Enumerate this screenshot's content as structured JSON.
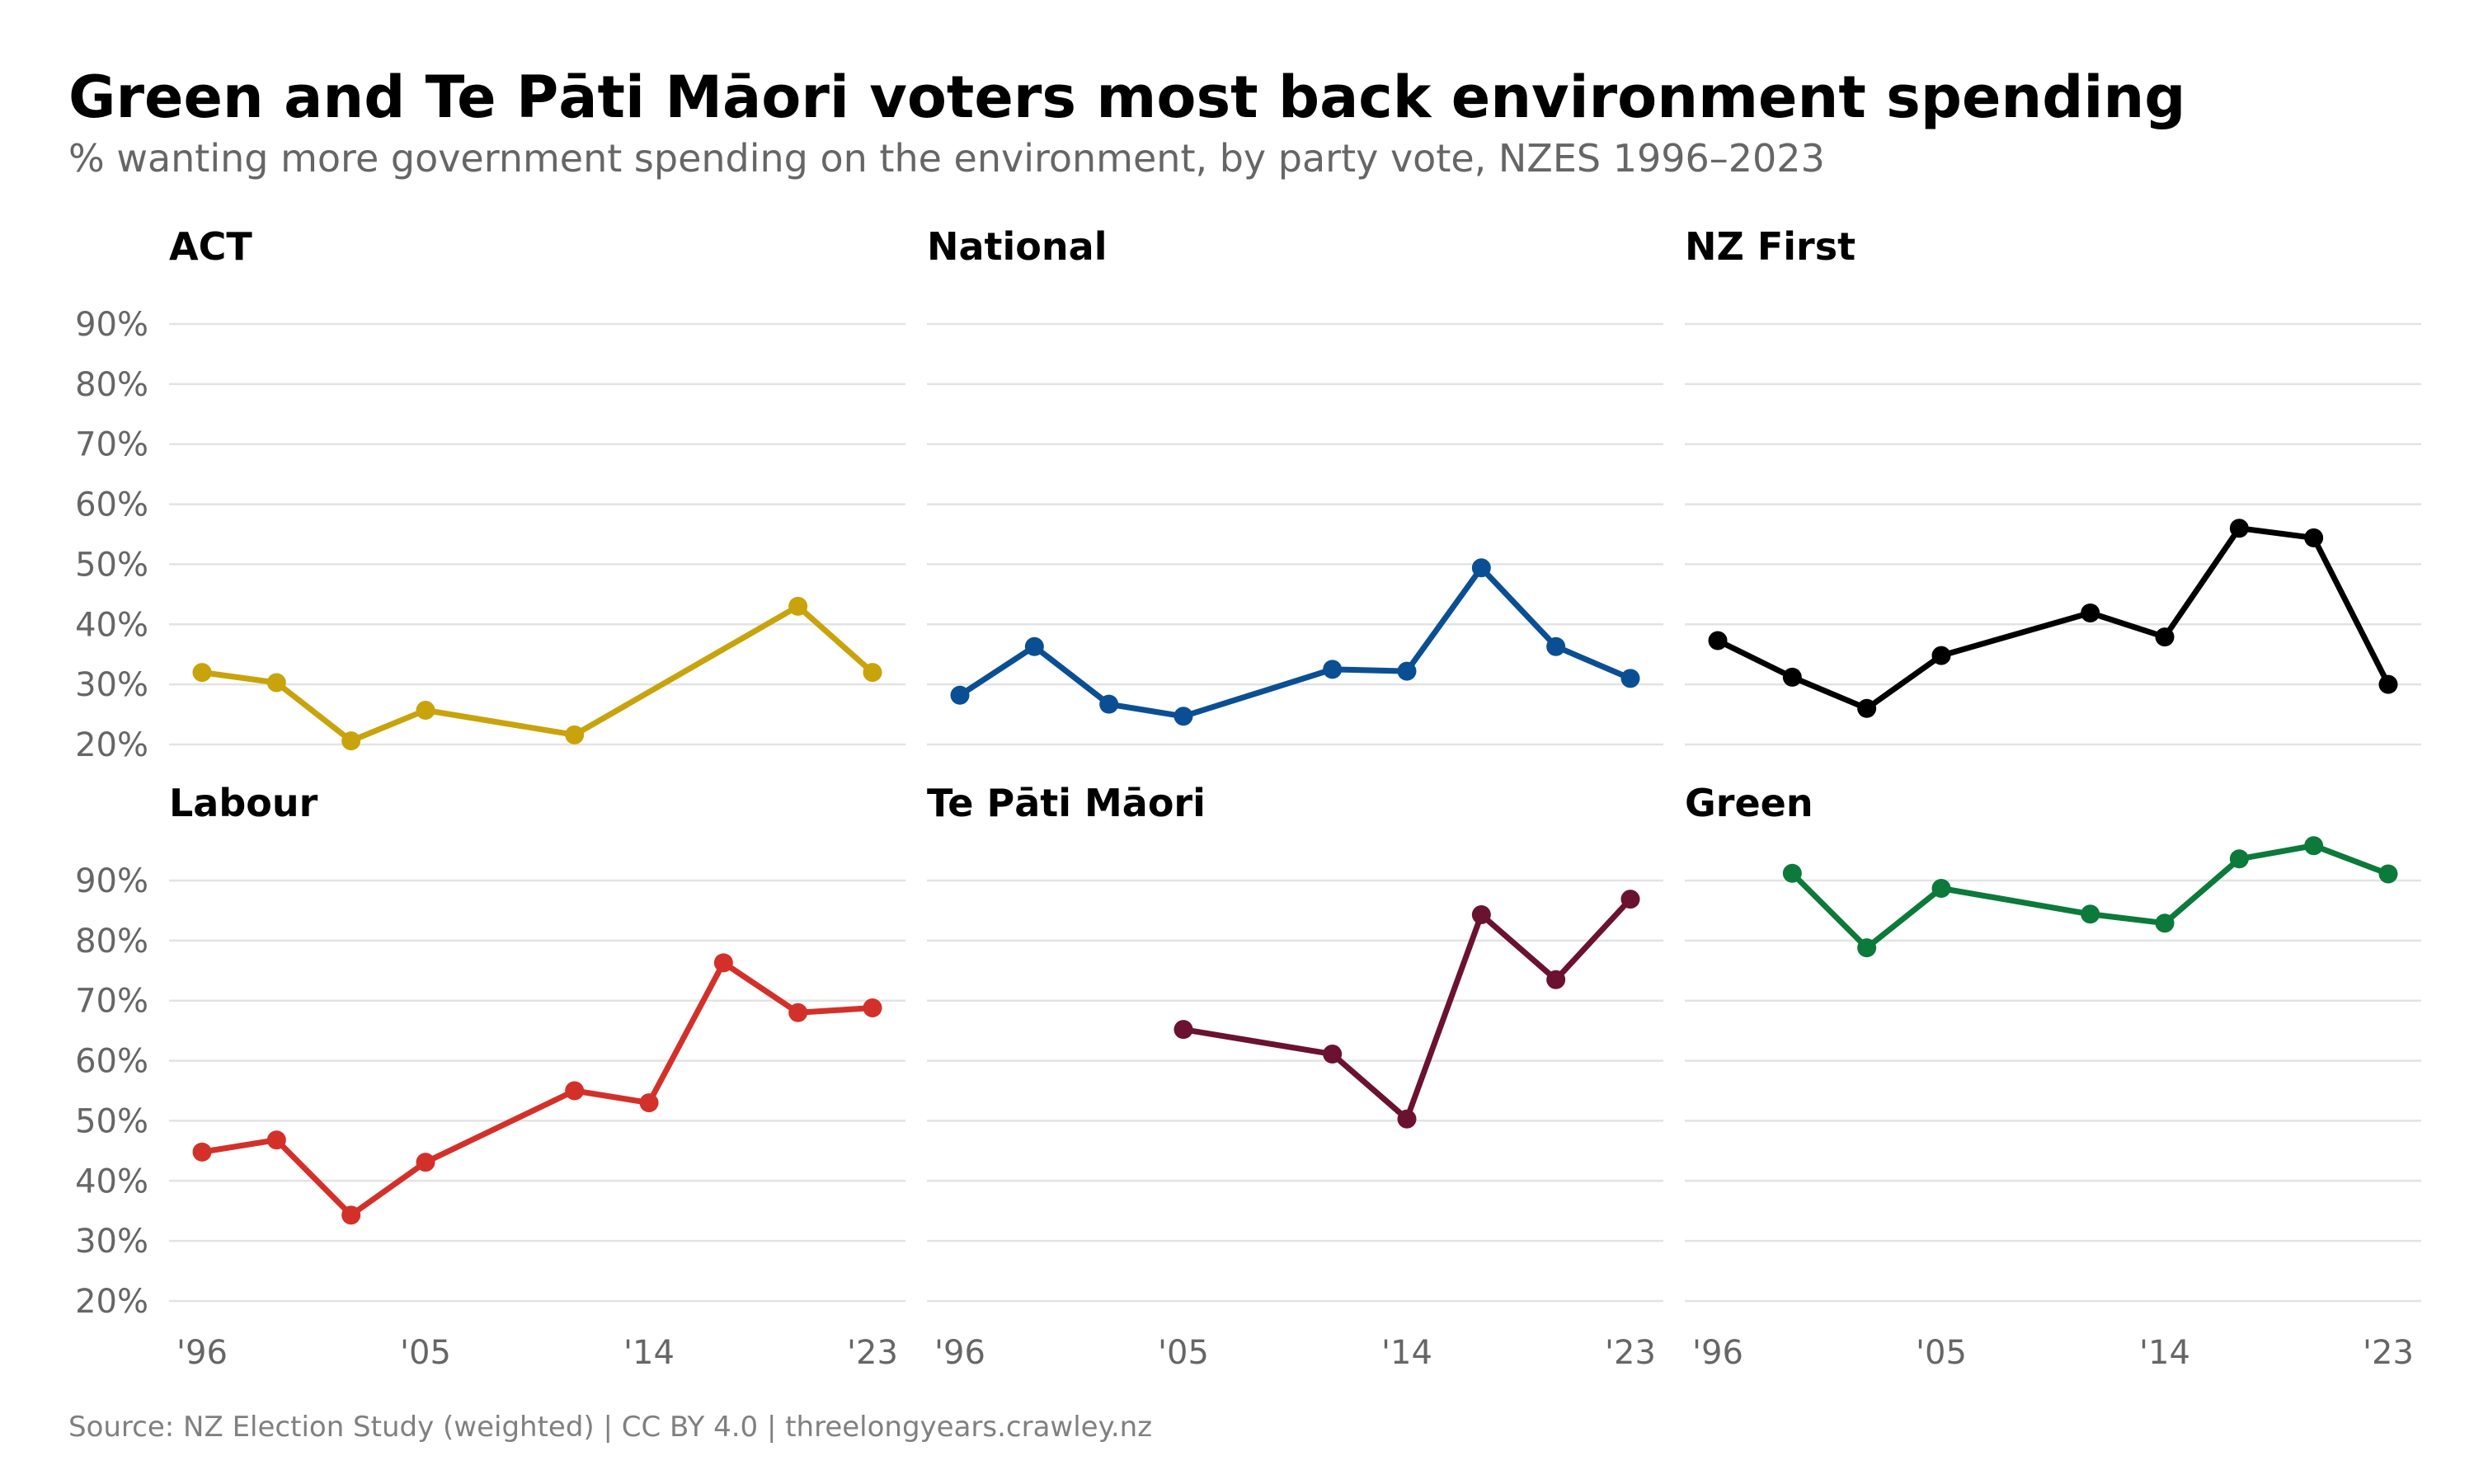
{
  "title": "Green and Te Pāti Māori voters most back environment spending",
  "subtitle": "% wanting more government spending on the environment, by party vote, NZES 1996–2023",
  "source": "Source: NZ Election Study (weighted) | CC BY 4.0 | threelongyears.crawley.nz",
  "colors": {
    "title": "#000000",
    "subtitle": "#666666",
    "tick": "#666666",
    "grid": "#e3e3e3",
    "source": "#808080"
  },
  "chart_data": {
    "type": "line",
    "layout": "small-multiples",
    "rows": 2,
    "cols": 3,
    "xlim": [
      1996,
      2023
    ],
    "ylim": [
      20,
      90
    ],
    "y_ticks": [
      20,
      30,
      40,
      50,
      60,
      70,
      80,
      90
    ],
    "y_tick_labels": [
      "20%",
      "30%",
      "40%",
      "50%",
      "60%",
      "70%",
      "80%",
      "90%"
    ],
    "x_ticks": [
      1996,
      2005,
      2014,
      2023
    ],
    "x_tick_labels": [
      "'96",
      "'05",
      "'14",
      "'23"
    ],
    "grid": "horizontal",
    "panels": [
      {
        "name": "ACT",
        "color": "#c9a30c",
        "points": [
          [
            1996,
            32
          ],
          [
            1999,
            30.3
          ],
          [
            2002,
            20.6
          ],
          [
            2005,
            25.7
          ],
          [
            2011,
            21.6
          ],
          [
            2020,
            43
          ],
          [
            2023,
            32
          ]
        ]
      },
      {
        "name": "National",
        "color": "#0a4f94",
        "points": [
          [
            1996,
            28.2
          ],
          [
            1999,
            36.3
          ],
          [
            2002,
            26.7
          ],
          [
            2005,
            24.7
          ],
          [
            2011,
            32.5
          ],
          [
            2014,
            32.2
          ],
          [
            2017,
            49.4
          ],
          [
            2020,
            36.3
          ],
          [
            2023,
            31
          ]
        ]
      },
      {
        "name": "NZ First",
        "color": "#000000",
        "points": [
          [
            1996,
            37.3
          ],
          [
            1999,
            31.2
          ],
          [
            2002,
            26
          ],
          [
            2005,
            34.8
          ],
          [
            2011,
            41.9
          ],
          [
            2014,
            37.9
          ],
          [
            2017,
            56
          ],
          [
            2020,
            54.4
          ],
          [
            2023,
            30
          ]
        ]
      },
      {
        "name": "Labour",
        "color": "#d4302a",
        "points": [
          [
            1996,
            44.8
          ],
          [
            1999,
            46.8
          ],
          [
            2002,
            34.3
          ],
          [
            2005,
            43.1
          ],
          [
            2011,
            55
          ],
          [
            2014,
            53
          ],
          [
            2017,
            76.3
          ],
          [
            2020,
            68
          ],
          [
            2023,
            68.8
          ]
        ]
      },
      {
        "name": "Te Pāti Māori",
        "color": "#6b1231",
        "points": [
          [
            2005,
            65.2
          ],
          [
            2011,
            61.1
          ],
          [
            2014,
            50.3
          ],
          [
            2017,
            84.3
          ],
          [
            2020,
            73.5
          ],
          [
            2023,
            86.9
          ]
        ]
      },
      {
        "name": "Green",
        "color": "#0b7a3a",
        "points": [
          [
            1999,
            91.2
          ],
          [
            2002,
            78.8
          ],
          [
            2005,
            88.7
          ],
          [
            2011,
            84.4
          ],
          [
            2014,
            82.9
          ],
          [
            2017,
            93.6
          ],
          [
            2020,
            95.8
          ],
          [
            2023,
            91.1
          ]
        ]
      }
    ]
  }
}
